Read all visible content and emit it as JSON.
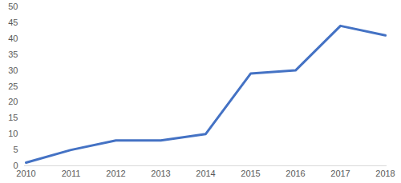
{
  "chart_data": {
    "type": "line",
    "categories": [
      "2010",
      "2011",
      "2012",
      "2013",
      "2014",
      "2015",
      "2016",
      "2017",
      "2018"
    ],
    "values": [
      1,
      5,
      8,
      8,
      10,
      29,
      30,
      44,
      41
    ],
    "color": "#4472c4",
    "ylim": [
      0,
      50
    ],
    "yticks": [
      0,
      5,
      10,
      15,
      20,
      25,
      30,
      35,
      40,
      45,
      50
    ],
    "grid": false
  }
}
